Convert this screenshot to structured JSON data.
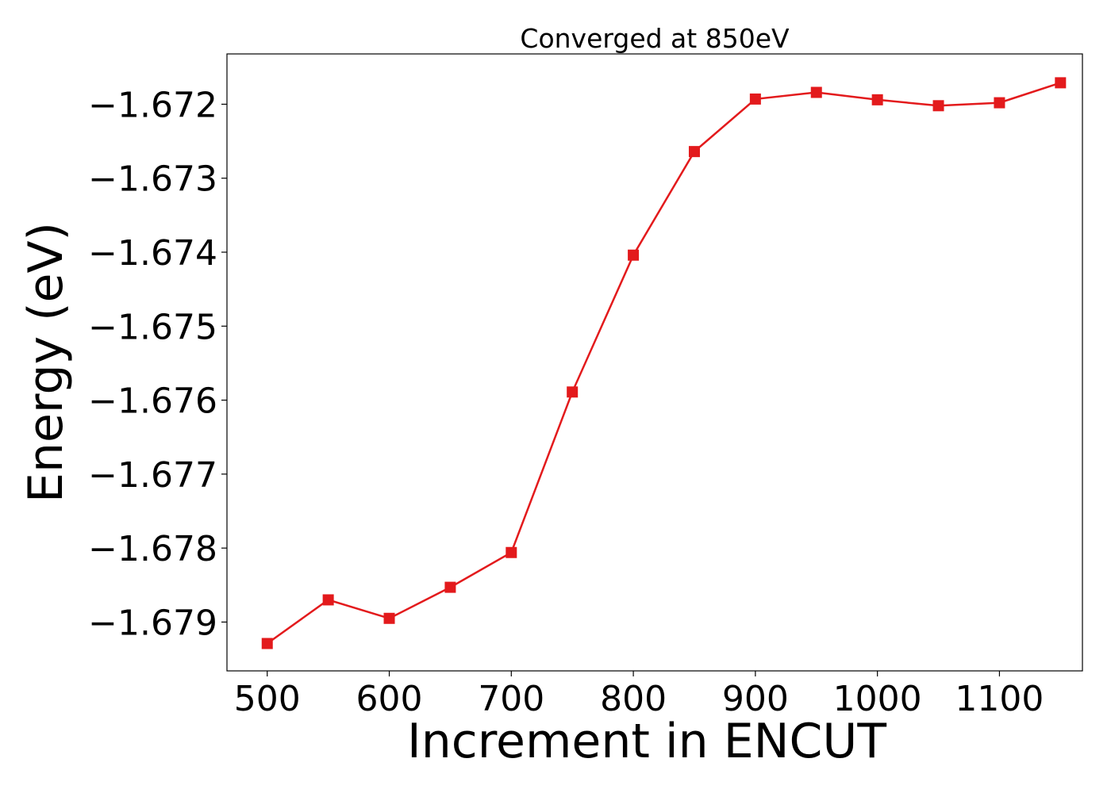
{
  "chart_data": {
    "type": "line",
    "title": "Converged at 850eV",
    "xlabel": "Increment in ENCUT",
    "ylabel": "Energy (eV)",
    "x": [
      500,
      550,
      600,
      650,
      700,
      750,
      800,
      850,
      900,
      950,
      1000,
      1050,
      1100,
      1150
    ],
    "series": [
      {
        "values": [
          -1.67929,
          -1.6787,
          -1.67895,
          -1.67853,
          -1.67806,
          -1.67589,
          -1.67404,
          -1.67264,
          -1.67193,
          -1.67184,
          -1.67194,
          -1.67202,
          -1.67198,
          -1.67171
        ],
        "color": "#e31a1c",
        "marker": "square"
      }
    ],
    "xlim": [
      467,
      1168
    ],
    "ylim": [
      -1.67966,
      -1.67132
    ],
    "xticks": [
      500,
      600,
      700,
      800,
      900,
      1000,
      1100
    ],
    "xtick_labels": [
      "500",
      "600",
      "700",
      "800",
      "900",
      "1000",
      "1100"
    ],
    "yticks": [
      -1.672,
      -1.673,
      -1.674,
      -1.675,
      -1.676,
      -1.677,
      -1.678,
      -1.679
    ],
    "ytick_labels": [
      "−1.672",
      "−1.673",
      "−1.674",
      "−1.675",
      "−1.676",
      "−1.677",
      "−1.678",
      "−1.679"
    ],
    "grid": false,
    "legend": "none"
  }
}
